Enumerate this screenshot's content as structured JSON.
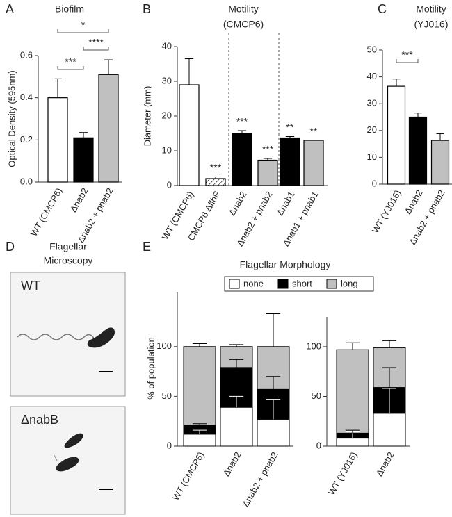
{
  "chart_data": [
    {
      "type": "bar",
      "panel": "A",
      "title": "Biofilm",
      "ylabel": "Optical Density (595nm)",
      "categories": [
        "WT (CMCP6)",
        "Δnab2",
        "Δnab2 + pnab2"
      ],
      "values": [
        0.4,
        0.21,
        0.51
      ],
      "errors": [
        0.09,
        0.025,
        0.07
      ],
      "colors": [
        "#ffffff",
        "#000000",
        "#c0c0c0"
      ],
      "ylim": [
        0,
        0.6
      ],
      "yticks": [
        {
          "value": 0,
          "label": "0.0"
        },
        0.2,
        0.4,
        0.6
      ],
      "annotations": [
        "***",
        "****",
        "*"
      ]
    },
    {
      "type": "bar",
      "panel": "B",
      "title": "Motility",
      "subtitle": "(CMCP6)",
      "ylabel": "Diameter (mm)",
      "categories": [
        "WT (CMCP6)",
        "CMCP6 ΔflhF",
        "Δnab2",
        "Δnab2 + pnab2",
        "Δnab1",
        "Δnab1 + pnab1"
      ],
      "values": [
        29,
        2,
        15,
        7.3,
        13.7,
        13
      ],
      "errors": [
        7.5,
        0.5,
        0.8,
        0.5,
        0.4,
        0
      ],
      "colors": [
        "#ffffff",
        "hatched",
        "#000000",
        "#c0c0c0",
        "#000000",
        "#c0c0c0"
      ],
      "ylim": [
        0,
        40
      ],
      "yticks": [
        0,
        10,
        20,
        30,
        40
      ],
      "annotations": [
        null,
        "***",
        "***",
        "***",
        "**",
        "**"
      ]
    },
    {
      "type": "bar",
      "panel": "C",
      "title": "Motility",
      "subtitle": "(YJ016)",
      "categories": [
        "WT (YJ016)",
        "Δnab2",
        "Δnab2 + pnab2"
      ],
      "values": [
        36.5,
        25,
        16.3
      ],
      "errors": [
        2.7,
        1.5,
        2.5
      ],
      "colors": [
        "#ffffff",
        "#000000",
        "#c0c0c0"
      ],
      "ylim": [
        0,
        50
      ],
      "yticks": [
        0,
        10,
        20,
        30,
        40,
        50
      ],
      "annotations": [
        "***"
      ]
    },
    {
      "type": "stacked_bar",
      "panel": "E",
      "title": "Flagellar Morphology",
      "ylabel": "% of population",
      "categories": [
        "WT (CMCP6)",
        "Δnab2",
        "Δnab2 + pnab2"
      ],
      "series": [
        {
          "name": "none",
          "color": "#ffffff",
          "values": [
            12,
            39,
            27
          ],
          "errors": [
            4,
            11,
            20
          ]
        },
        {
          "name": "short",
          "color": "#000000",
          "values": [
            9,
            40,
            30
          ],
          "errors": [
            1.5,
            8,
            13
          ]
        },
        {
          "name": "long",
          "color": "#c0c0c0",
          "values": [
            79,
            21,
            43
          ],
          "errors": [
            3,
            2,
            33
          ]
        }
      ],
      "ylim": [
        0,
        155
      ],
      "yticks": [
        0,
        50,
        100
      ],
      "legend": "top"
    },
    {
      "type": "stacked_bar",
      "categories": [
        "WT (YJ016)",
        "Δnab2"
      ],
      "series": [
        {
          "name": "none",
          "color": "#ffffff",
          "values": [
            8,
            33
          ],
          "errors": [
            7,
            25
          ]
        },
        {
          "name": "short",
          "color": "#000000",
          "values": [
            5,
            26
          ],
          "errors": [
            3,
            20
          ]
        },
        {
          "name": "long",
          "color": "#c0c0c0",
          "values": [
            84,
            40
          ],
          "errors": [
            7,
            7
          ]
        }
      ],
      "ylim": [
        0,
        130
      ],
      "yticks": [
        0,
        50,
        100
      ]
    }
  ],
  "microscopy": {
    "panel": "D",
    "title": "Flagellar",
    "subtitle": "Microscopy",
    "images": [
      "WT",
      "ΔnabB"
    ]
  }
}
